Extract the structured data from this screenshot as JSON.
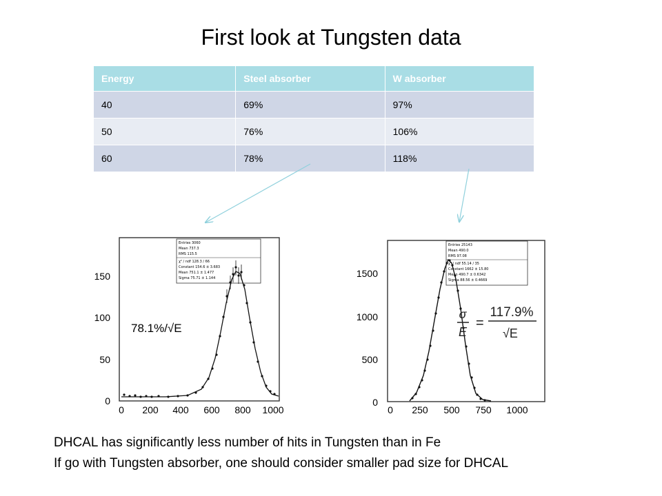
{
  "title": "First look at Tungsten data",
  "table": {
    "headers": [
      "Energy",
      "Steel absorber",
      "W absorber"
    ],
    "rows": [
      [
        "40",
        "69%",
        "97%"
      ],
      [
        "50",
        "76%",
        "106%"
      ],
      [
        "60",
        "78%",
        "118%"
      ]
    ]
  },
  "colors": {
    "header": "#a9dde5",
    "row_dark": "#cfd6e6",
    "row_light": "#e8ecf3",
    "arrow": "#8fd0dc"
  },
  "plots": {
    "left": {
      "annotation": "78.1%/√E",
      "yticks": [
        "150",
        "100",
        "50",
        "0"
      ],
      "xticks": [
        "0",
        "200",
        "400",
        "600",
        "800",
        "1000"
      ],
      "stats": {
        "row1": "Entries        3060",
        "row2": "Mean          737.3",
        "row3": "RMS           115.5",
        "row4": "χ² / ndf  128.3  /   66",
        "row5": "Constant    154.6 ±  3.683",
        "row6": "Mean        751.1 ±  1.477",
        "row7": "Sigma       75.71 ±  1.144"
      }
    },
    "right": {
      "annotation_num": "σ",
      "annotation_den": "E",
      "annotation_value": "117.9%",
      "annotation_sqrt": "√E",
      "annotation_eq": "=",
      "yticks": [
        "1500",
        "1000",
        "500",
        "0"
      ],
      "xticks": [
        "0",
        "250",
        "500",
        "750",
        "1000"
      ],
      "stats": {
        "row1": "Entries      25143",
        "row2": "Mean          490.0",
        "row3": "RMS           97.08",
        "row4": "χ² / ndf  55.14  /  35",
        "row5": "Constant   1662 ±  15.80",
        "row6": "Mean     490.7 ±  0.6342",
        "row7": "Sigma   88.56 ±  0.4669"
      }
    }
  },
  "caption": {
    "line1": "DHCAL has significantly less number of hits in Tungsten than in Fe",
    "line2": "If go with Tungsten absorber, one should consider smaller pad size for DHCAL"
  }
}
